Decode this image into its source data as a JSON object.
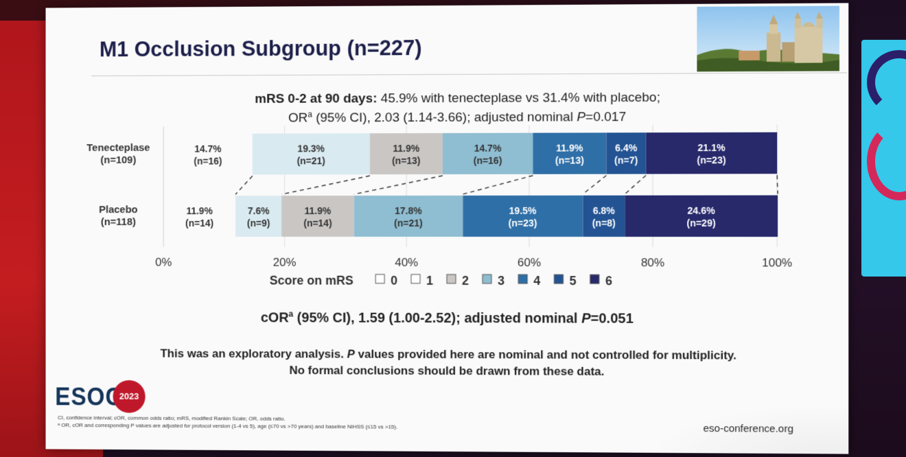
{
  "slide": {
    "title": "M1 Occlusion Subgroup (n=227)",
    "subtitle_bold": "mRS 0-2 at 90 days:",
    "subtitle_rest": " 45.9% with tenecteplase vs 31.4% with placebo;",
    "subtitle_line2_a": "OR",
    "subtitle_line2_sup": "a",
    "subtitle_line2_b": " (95% CI), 2.03 (1.14-3.66); adjusted nominal ",
    "subtitle_line2_p": "P",
    "subtitle_line2_c": "=0.017",
    "cor_a": "cOR",
    "cor_sup": "a",
    "cor_b": " (95% CI), 1.59 (1.00-2.52); adjusted nominal ",
    "cor_p": "P",
    "cor_c": "=0.051",
    "disclaimer_1a": "This was an exploratory analysis. ",
    "disclaimer_1p": "P",
    "disclaimer_1b": " values provided here are nominal and not controlled for multiplicity.",
    "disclaimer_2": "No formal conclusions should be drawn from these data.",
    "logo_text": "ESOC",
    "logo_year": "2023",
    "footnote_1": "CI, confidence interval; cOR, common odds ratio; mRS, modified Rankin Scale; OR, odds ratio.",
    "footnote_2": "ᵃ OR, cOR and corresponding P values are adjusted for protocol version (1-4 vs 5), age (≤70 vs >70 years) and baseline NIHSS (≤15 vs >15).",
    "website": "eso-conference.org"
  },
  "chart_data": {
    "type": "bar",
    "orientation": "horizontal",
    "stacked": "100%",
    "xlim": [
      0,
      100
    ],
    "x_ticks": [
      "0%",
      "20%",
      "40%",
      "60%",
      "80%",
      "100%"
    ],
    "x_tick_values": [
      0,
      20,
      40,
      60,
      80,
      100
    ],
    "legend_title": "Score on mRS",
    "legend_position": "bottom",
    "categories_label": [
      "0",
      "1",
      "2",
      "3",
      "4",
      "5",
      "6"
    ],
    "colors": [
      "#d9eaf0",
      "#d9eaf0",
      "#c9c6c4",
      "#8fbdd1",
      "#2f6fa7",
      "#235393",
      "#27296b"
    ],
    "legend_swatches": [
      "#ffffff",
      "#ffffff",
      "#c9c6c4",
      "#8fbdd1",
      "#2f6fa7",
      "#235393",
      "#27296b"
    ],
    "rows": [
      {
        "name": "Tenecteplase",
        "n": "(n=109)",
        "values": [
          14.7,
          19.3,
          11.9,
          14.7,
          11.9,
          6.4,
          21.1
        ],
        "pct": [
          "14.7%",
          "19.3%",
          "11.9%",
          "14.7%",
          "11.9%",
          "6.4%",
          "21.1%"
        ],
        "counts": [
          "(n=16)",
          "(n=21)",
          "(n=13)",
          "(n=16)",
          "(n=13)",
          "(n=7)",
          "(n=23)"
        ]
      },
      {
        "name": "Placebo",
        "n": "(n=118)",
        "values": [
          11.9,
          7.6,
          11.9,
          17.8,
          19.5,
          6.8,
          24.6
        ],
        "pct": [
          "11.9%",
          "7.6%",
          "11.9%",
          "17.8%",
          "19.5%",
          "6.8%",
          "24.6%"
        ],
        "counts": [
          "(n=14)",
          "(n=9)",
          "(n=14)",
          "(n=21)",
          "(n=23)",
          "(n=8)",
          "(n=29)"
        ]
      }
    ]
  }
}
